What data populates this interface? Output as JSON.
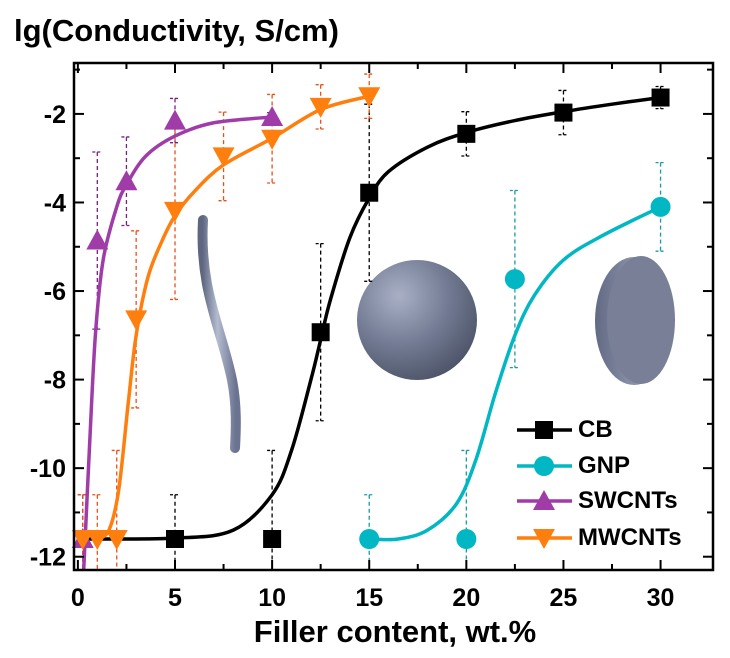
{
  "chart_data": {
    "type": "scatter",
    "title": "",
    "ylabel": "lg(Conductivity, S/cm)",
    "xlabel": "Filler content, wt.%",
    "xlim": [
      -0.2,
      32.7
    ],
    "ylim": [
      -12.3,
      -0.85
    ],
    "xticks": [
      0,
      5,
      10,
      15,
      20,
      25,
      30
    ],
    "xtick_labels": [
      "0",
      "5",
      "10",
      "15",
      "20",
      "25",
      "30"
    ],
    "yticks": [
      -2,
      -4,
      -6,
      -8,
      -10,
      -12
    ],
    "ytick_labels": [
      "-2",
      "-4",
      "-6",
      "-8",
      "-10",
      "-12"
    ],
    "grid": false,
    "legend_position": "bottom-right",
    "series": [
      {
        "name": "CB",
        "color": "#000000",
        "marker": "square",
        "x": [
          5,
          10,
          12.5,
          15,
          20,
          25,
          30
        ],
        "y": [
          -11.6,
          -11.6,
          -6.93,
          -3.78,
          -2.45,
          -1.97,
          -1.63
        ],
        "err": [
          1.0,
          2.0,
          2.0,
          2.0,
          0.5,
          0.5,
          0.25
        ],
        "fit": [
          [
            0,
            -11.6
          ],
          [
            5,
            -11.58
          ],
          [
            8,
            -11.4
          ],
          [
            10,
            -10.6
          ],
          [
            11,
            -9.6
          ],
          [
            12,
            -8.0
          ],
          [
            12.5,
            -7.1
          ],
          [
            13,
            -6.2
          ],
          [
            14,
            -4.8
          ],
          [
            15,
            -3.9
          ],
          [
            16,
            -3.3
          ],
          [
            18,
            -2.75
          ],
          [
            20,
            -2.42
          ],
          [
            22.5,
            -2.15
          ],
          [
            25,
            -1.95
          ],
          [
            27.5,
            -1.78
          ],
          [
            30,
            -1.63
          ]
        ]
      },
      {
        "name": "GNP",
        "color": "#00B7C3",
        "marker": "circle",
        "x": [
          15,
          20,
          22.5,
          30
        ],
        "y": [
          -11.6,
          -11.6,
          -5.73,
          -4.1
        ],
        "err": [
          1.0,
          2.0,
          2.0,
          1.0
        ],
        "fit": [
          [
            15,
            -11.6
          ],
          [
            16.5,
            -11.6
          ],
          [
            18,
            -11.4
          ],
          [
            19.5,
            -10.8
          ],
          [
            20.5,
            -9.8
          ],
          [
            21.5,
            -8.3
          ],
          [
            22.5,
            -7.0
          ],
          [
            23.5,
            -6.1
          ],
          [
            25,
            -5.3
          ],
          [
            27,
            -4.75
          ],
          [
            30,
            -4.1
          ]
        ]
      },
      {
        "name": "SWCNTs",
        "color": "#A03CA8",
        "marker": "triangle-up",
        "x": [
          0.25,
          1,
          2.5,
          5,
          10
        ],
        "y": [
          -11.6,
          -4.86,
          -3.52,
          -2.15,
          -2.07
        ],
        "err": [
          1.0,
          2.0,
          1.0,
          0.5,
          0.1
        ],
        "fit": [
          [
            0.3,
            -12.3
          ],
          [
            0.6,
            -9.5
          ],
          [
            0.9,
            -7.0
          ],
          [
            1.3,
            -5.3
          ],
          [
            2,
            -4.1
          ],
          [
            2.5,
            -3.6
          ],
          [
            3.5,
            -2.95
          ],
          [
            5,
            -2.5
          ],
          [
            7,
            -2.2
          ],
          [
            10,
            -2.07
          ]
        ]
      },
      {
        "name": "MWCNTs",
        "color": "#FF7F0E",
        "marker": "triangle-down",
        "x": [
          0.25,
          1,
          2,
          3,
          5,
          7.5,
          10,
          12.5,
          15
        ],
        "y": [
          -11.6,
          -11.6,
          -11.6,
          -6.64,
          -4.19,
          -2.96,
          -2.56,
          -1.84,
          -1.6
        ],
        "err": [
          1.0,
          1.0,
          2.0,
          2.0,
          2.0,
          1.0,
          1.0,
          0.5,
          0.5
        ],
        "fit": [
          [
            1,
            -11.6
          ],
          [
            1.6,
            -11.4
          ],
          [
            2.1,
            -10.5
          ],
          [
            2.6,
            -8.5
          ],
          [
            3,
            -7.0
          ],
          [
            3.6,
            -5.7
          ],
          [
            4.3,
            -4.9
          ],
          [
            5,
            -4.3
          ],
          [
            6,
            -3.75
          ],
          [
            7.5,
            -3.15
          ],
          [
            10,
            -2.55
          ],
          [
            12.5,
            -1.9
          ],
          [
            15,
            -1.6
          ]
        ]
      }
    ],
    "annotations": [
      "nanotube illustration",
      "sphere illustration",
      "disc illustration"
    ]
  }
}
